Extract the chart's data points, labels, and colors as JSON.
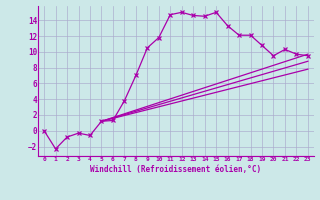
{
  "xlabel": "Windchill (Refroidissement éolien,°C)",
  "bg_color": "#cce8e8",
  "line_color": "#aa00aa",
  "grid_color": "#aaaacc",
  "xlim": [
    -0.5,
    23.5
  ],
  "ylim": [
    -3.2,
    15.8
  ],
  "yticks": [
    -2,
    0,
    2,
    4,
    6,
    8,
    10,
    12,
    14
  ],
  "xticks": [
    0,
    1,
    2,
    3,
    4,
    5,
    6,
    7,
    8,
    9,
    10,
    11,
    12,
    13,
    14,
    15,
    16,
    17,
    18,
    19,
    20,
    21,
    22,
    23
  ],
  "series1_x": [
    0,
    1,
    2,
    3,
    4,
    5,
    6,
    7,
    8,
    9,
    10,
    11,
    12,
    13,
    14,
    15,
    16,
    17,
    18,
    19,
    20,
    21,
    22,
    23
  ],
  "series1_y": [
    0.0,
    -2.3,
    -0.8,
    -0.3,
    -0.6,
    1.2,
    1.3,
    3.8,
    7.0,
    10.5,
    11.8,
    14.7,
    15.0,
    14.6,
    14.5,
    15.0,
    13.3,
    12.1,
    12.1,
    10.8,
    9.5,
    10.3,
    9.7,
    9.5
  ],
  "series2_x": [
    5,
    23
  ],
  "series2_y": [
    1.2,
    9.7
  ],
  "series3_x": [
    5,
    23
  ],
  "series3_y": [
    1.2,
    8.8
  ],
  "series4_x": [
    5,
    23
  ],
  "series4_y": [
    1.2,
    7.8
  ]
}
